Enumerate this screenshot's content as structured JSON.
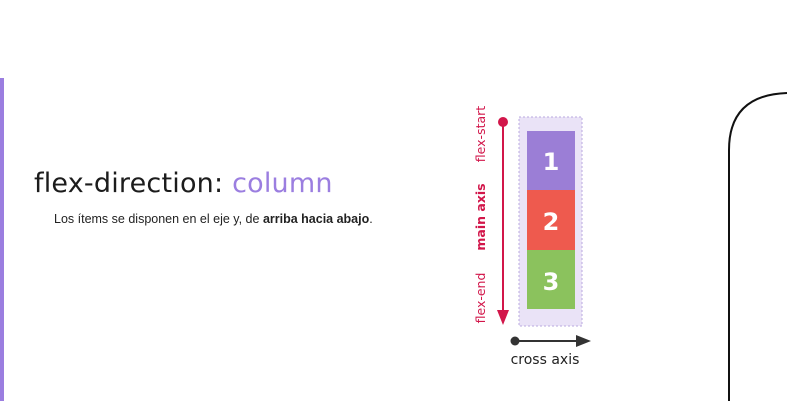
{
  "title": {
    "property": "flex-direction:",
    "value": "column"
  },
  "description": {
    "prefix": "Los ítems se disponen en el eje y, de ",
    "bold": "arriba hacia abajo",
    "suffix": "."
  },
  "diagram": {
    "items": [
      "1",
      "2",
      "3"
    ],
    "main_axis_label": "main axis",
    "start_label": "flex-start",
    "end_label": "flex-end",
    "cross_axis_label": "cross axis"
  },
  "colors": {
    "accent": "#9b7ee0",
    "item_1": "#9b7ed6",
    "item_2": "#ee5a4e",
    "item_3": "#8bc25d",
    "main_axis": "#d2164a",
    "container": "#eae3f7"
  }
}
